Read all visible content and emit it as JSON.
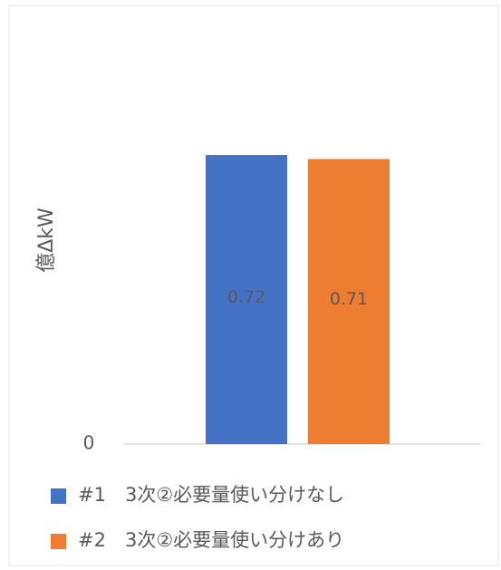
{
  "chart_data": {
    "type": "bar",
    "y_label": "億ΔkW",
    "categories": [
      null
    ],
    "series": [
      {
        "name": "#1　3次②必要量使い分けなし",
        "color": "#4472c4",
        "values": [
          0.72
        ]
      },
      {
        "name": "#2　3次②必要量使い分けあり",
        "color": "#ed7d31",
        "values": [
          0.71
        ]
      }
    ],
    "ylim": [
      0,
      1
    ],
    "yticks": [
      0
    ],
    "grid": false,
    "legend": "bottom"
  }
}
